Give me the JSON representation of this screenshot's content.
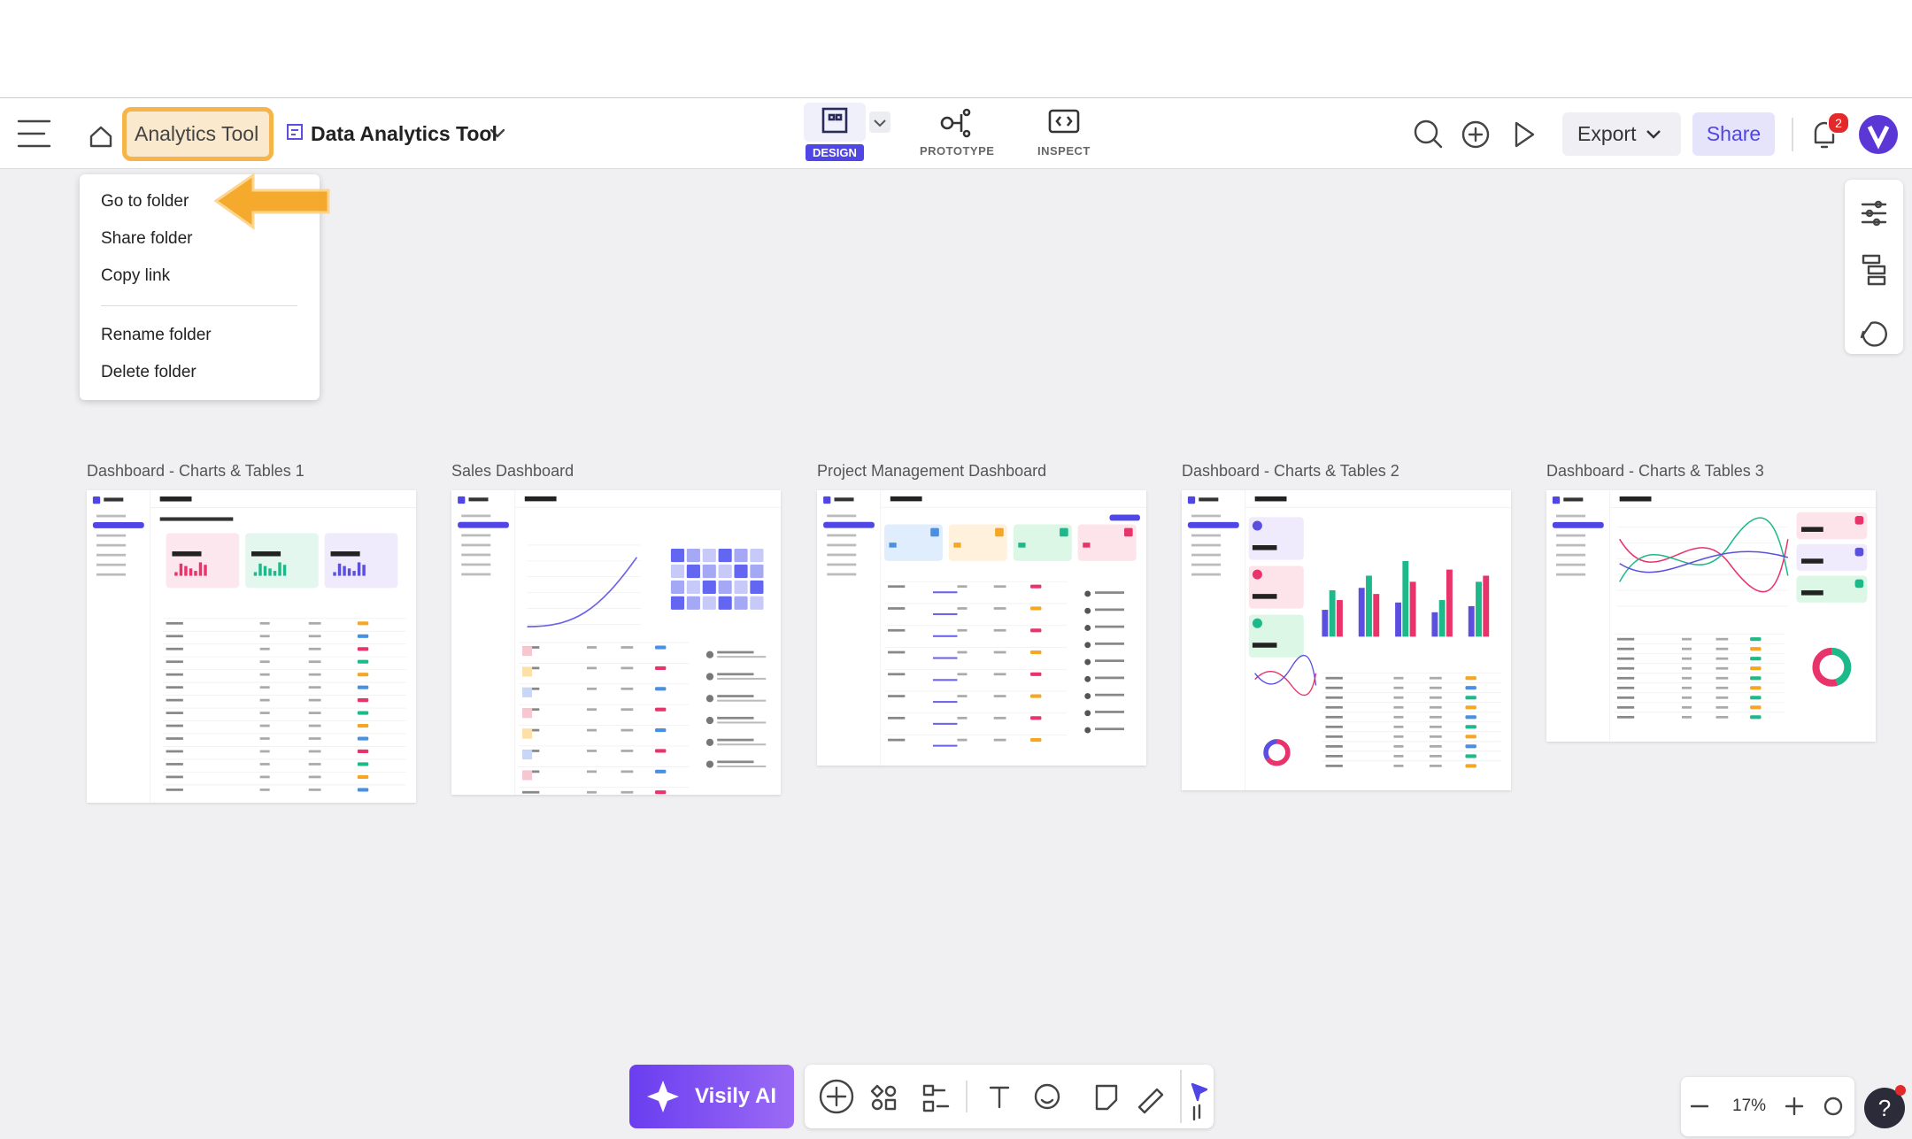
{
  "header": {
    "folder": "Analytics Tool",
    "project": "Data Analytics Tool",
    "tabs": [
      "DESIGN",
      "PROTOTYPE",
      "INSPECT"
    ],
    "export": "Export",
    "share": "Share",
    "notifications": "2"
  },
  "menu": {
    "items": [
      "Go to folder",
      "Share folder",
      "Copy link"
    ],
    "items2": [
      "Rename folder",
      "Delete folder"
    ]
  },
  "frames": [
    "Dashboard - Charts & Tables 1",
    "Sales Dashboard",
    "Project Management Dashboard",
    "Dashboard - Charts & Tables 2",
    "Dashboard - Charts & Tables 3"
  ],
  "bottom": {
    "ai": "Visily AI",
    "zoom": "17%"
  }
}
